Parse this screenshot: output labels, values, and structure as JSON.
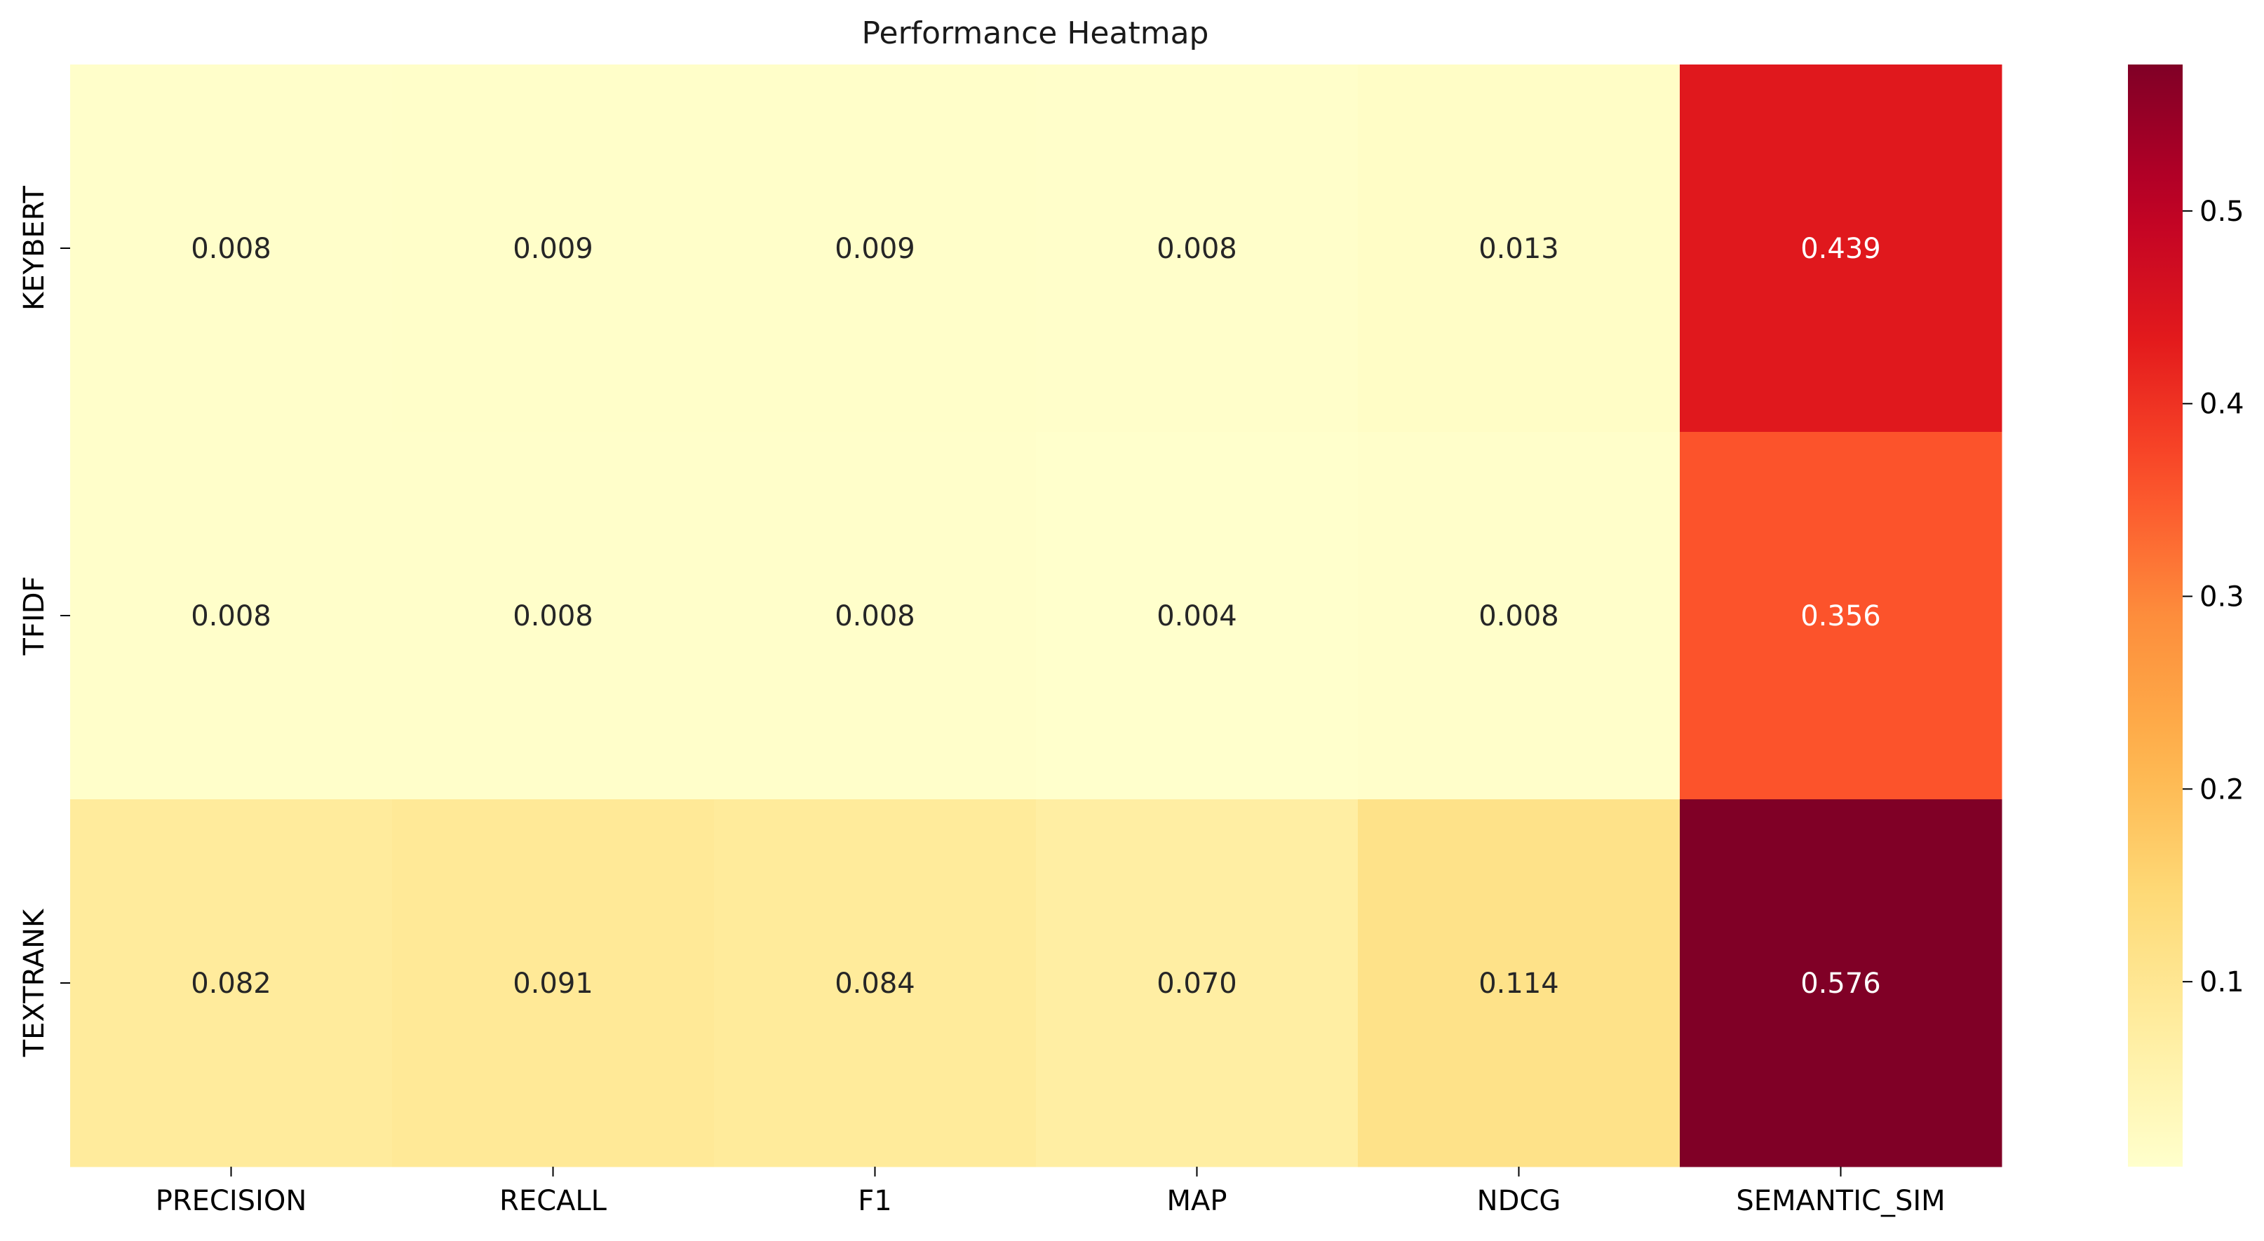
{
  "chart_data": {
    "type": "heatmap",
    "title": "Performance Heatmap",
    "xlabel": "",
    "ylabel": "",
    "columns": [
      "PRECISION",
      "RECALL",
      "F1",
      "MAP",
      "NDCG",
      "SEMANTIC_SIM"
    ],
    "rows": [
      "KEYBERT",
      "TFIDF",
      "TEXTRANK"
    ],
    "values": [
      [
        0.008,
        0.009,
        0.009,
        0.008,
        0.013,
        0.439
      ],
      [
        0.008,
        0.008,
        0.008,
        0.004,
        0.008,
        0.356
      ],
      [
        0.082,
        0.091,
        0.084,
        0.07,
        0.114,
        0.576
      ]
    ],
    "cell_labels": [
      [
        "0.008",
        "0.009",
        "0.009",
        "0.008",
        "0.013",
        "0.439"
      ],
      [
        "0.008",
        "0.008",
        "0.008",
        "0.004",
        "0.008",
        "0.356"
      ],
      [
        "0.082",
        "0.091",
        "0.084",
        "0.070",
        "0.114",
        "0.576"
      ]
    ],
    "colormap": "YlOrRd",
    "vmin": 0.004,
    "vmax": 0.576,
    "colorbar": {
      "ticks": [
        0.1,
        0.2,
        0.3,
        0.4,
        0.5
      ],
      "tick_labels": [
        "0.1",
        "0.2",
        "0.3",
        "0.4",
        "0.5"
      ]
    },
    "grid": false,
    "legend": "colorbar-right"
  }
}
